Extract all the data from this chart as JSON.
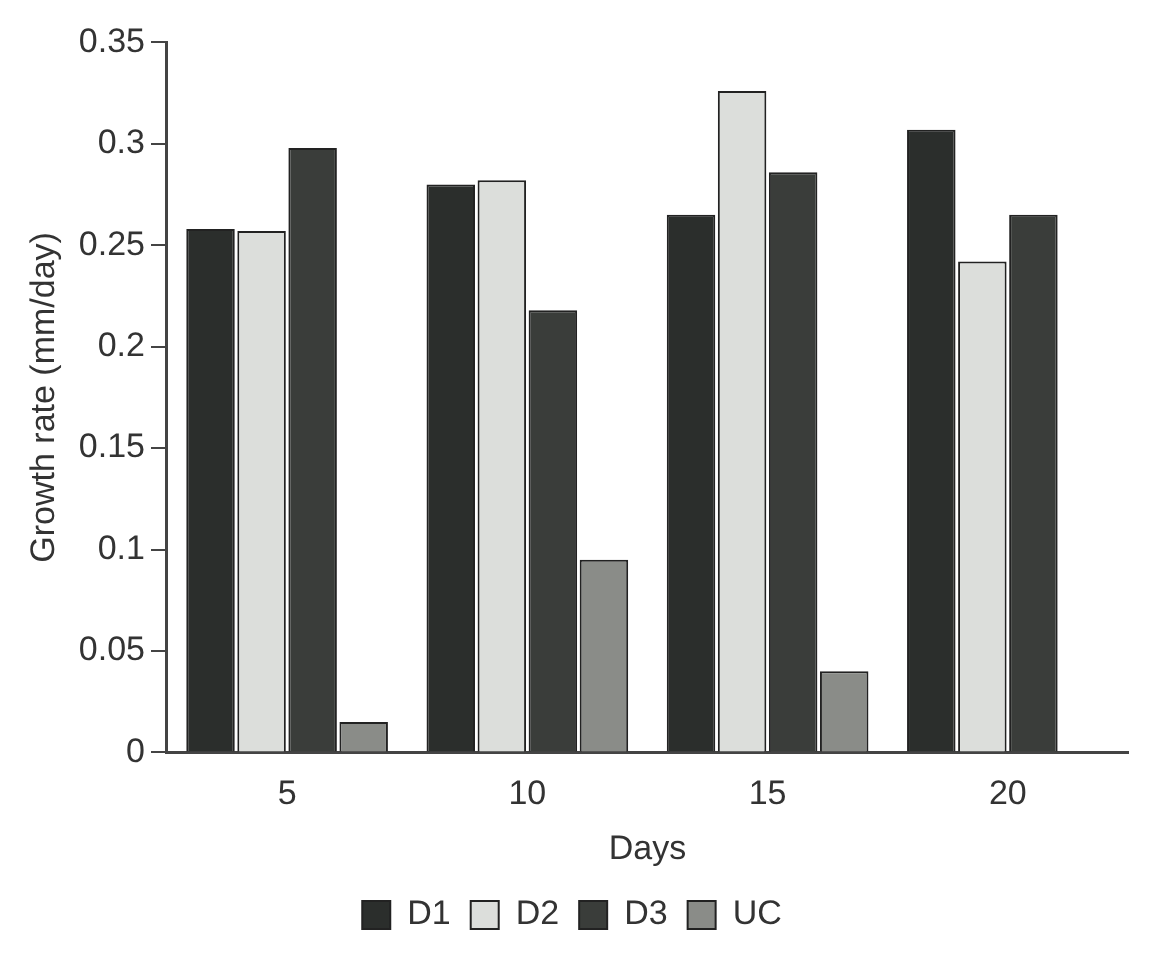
{
  "chart_data": {
    "type": "bar",
    "xlabel": "Days",
    "ylabel": "Growth rate (mm/day)",
    "categories": [
      "5",
      "10",
      "15",
      "20"
    ],
    "series": [
      {
        "name": "D1",
        "color": "#2b2e2c",
        "values": [
          0.258,
          0.28,
          0.265,
          0.307
        ]
      },
      {
        "name": "D2",
        "color": "#dcdedb",
        "values": [
          0.257,
          0.282,
          0.326,
          0.242
        ]
      },
      {
        "name": "D3",
        "color": "#3a3d3a",
        "values": [
          0.298,
          0.218,
          0.286,
          0.265
        ]
      },
      {
        "name": "UC",
        "color": "#8a8c88",
        "values": [
          0.015,
          0.095,
          0.04,
          null
        ]
      }
    ],
    "ylim": [
      0,
      0.35
    ],
    "yticks": [
      0,
      0.05,
      0.1,
      0.15,
      0.2,
      0.25,
      0.3,
      0.35
    ],
    "grid": false,
    "legend": "bottom"
  }
}
